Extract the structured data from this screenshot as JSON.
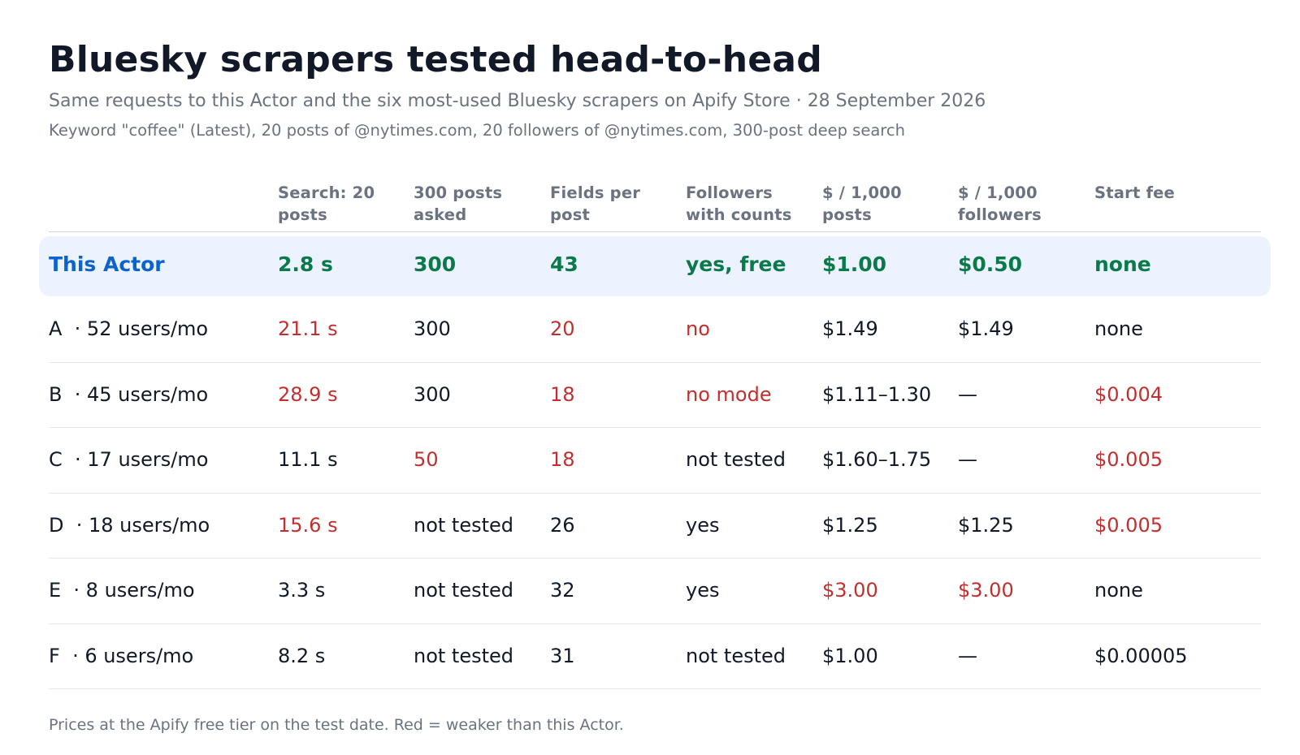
{
  "title": "Bluesky scrapers tested head-to-head",
  "subtitle": "Same requests to this Actor and the six most-used Bluesky scrapers on Apify Store · 28 September 2026",
  "subtitle2": "Keyword \"coffee\" (Latest), 20 posts of @nytimes.com, 20 followers of @nytimes.com, 300-post deep search",
  "colors": {
    "highlight_bg": "#edf3fe",
    "good": "#0b7a4b",
    "bad": "#c0302f",
    "brand": "#0b63ce"
  },
  "table": {
    "headers": [
      {
        "line1": "",
        "line2": ""
      },
      {
        "line1": "Search: 20",
        "line2": "posts"
      },
      {
        "line1": "300 posts",
        "line2": "asked"
      },
      {
        "line1": "Fields per",
        "line2": "post"
      },
      {
        "line1": "Followers",
        "line2": "with counts"
      },
      {
        "line1": "$ / 1,000",
        "line2": "posts"
      },
      {
        "line1": "$ / 1,000",
        "line2": "followers"
      },
      {
        "line1": "Start fee",
        "line2": ""
      }
    ],
    "rows": [
      {
        "name": "This Actor",
        "cells": [
          {
            "v": "2.8 s",
            "c": "good"
          },
          {
            "v": "300",
            "c": "good"
          },
          {
            "v": "43",
            "c": "good"
          },
          {
            "v": "yes, free",
            "c": "good"
          },
          {
            "v": "$1.00",
            "c": "good"
          },
          {
            "v": "$0.50",
            "c": "good"
          },
          {
            "v": "none",
            "c": "good"
          }
        ]
      },
      {
        "name": "A  · 52 users/mo",
        "cells": [
          {
            "v": "21.1 s",
            "c": "bad"
          },
          {
            "v": "300",
            "c": "normal"
          },
          {
            "v": "20",
            "c": "bad"
          },
          {
            "v": "no",
            "c": "bad"
          },
          {
            "v": "$1.49",
            "c": "normal"
          },
          {
            "v": "$1.49",
            "c": "normal"
          },
          {
            "v": "none",
            "c": "normal"
          }
        ]
      },
      {
        "name": "B  · 45 users/mo",
        "cells": [
          {
            "v": "28.9 s",
            "c": "bad"
          },
          {
            "v": "300",
            "c": "normal"
          },
          {
            "v": "18",
            "c": "bad"
          },
          {
            "v": "no mode",
            "c": "bad"
          },
          {
            "v": "$1.11–1.30",
            "c": "normal"
          },
          {
            "v": "—",
            "c": "normal"
          },
          {
            "v": "$0.004",
            "c": "bad"
          }
        ]
      },
      {
        "name": "C  · 17 users/mo",
        "cells": [
          {
            "v": "11.1 s",
            "c": "normal"
          },
          {
            "v": "50",
            "c": "bad"
          },
          {
            "v": "18",
            "c": "bad"
          },
          {
            "v": "not tested",
            "c": "normal"
          },
          {
            "v": "$1.60–1.75",
            "c": "normal"
          },
          {
            "v": "—",
            "c": "normal"
          },
          {
            "v": "$0.005",
            "c": "bad"
          }
        ]
      },
      {
        "name": "D  · 18 users/mo",
        "cells": [
          {
            "v": "15.6 s",
            "c": "bad"
          },
          {
            "v": "not tested",
            "c": "normal"
          },
          {
            "v": "26",
            "c": "normal"
          },
          {
            "v": "yes",
            "c": "normal"
          },
          {
            "v": "$1.25",
            "c": "normal"
          },
          {
            "v": "$1.25",
            "c": "normal"
          },
          {
            "v": "$0.005",
            "c": "bad"
          }
        ]
      },
      {
        "name": "E  · 8 users/mo",
        "cells": [
          {
            "v": "3.3 s",
            "c": "normal"
          },
          {
            "v": "not tested",
            "c": "normal"
          },
          {
            "v": "32",
            "c": "normal"
          },
          {
            "v": "yes",
            "c": "normal"
          },
          {
            "v": "$3.00",
            "c": "bad"
          },
          {
            "v": "$3.00",
            "c": "bad"
          },
          {
            "v": "none",
            "c": "normal"
          }
        ]
      },
      {
        "name": "F  · 6 users/mo",
        "cells": [
          {
            "v": "8.2 s",
            "c": "normal"
          },
          {
            "v": "not tested",
            "c": "normal"
          },
          {
            "v": "31",
            "c": "normal"
          },
          {
            "v": "not tested",
            "c": "normal"
          },
          {
            "v": "$1.00",
            "c": "normal"
          },
          {
            "v": "—",
            "c": "normal"
          },
          {
            "v": "$0.00005",
            "c": "normal"
          }
        ]
      }
    ]
  },
  "footnote": "Prices at the Apify free tier on the test date. Red = weaker than this Actor."
}
